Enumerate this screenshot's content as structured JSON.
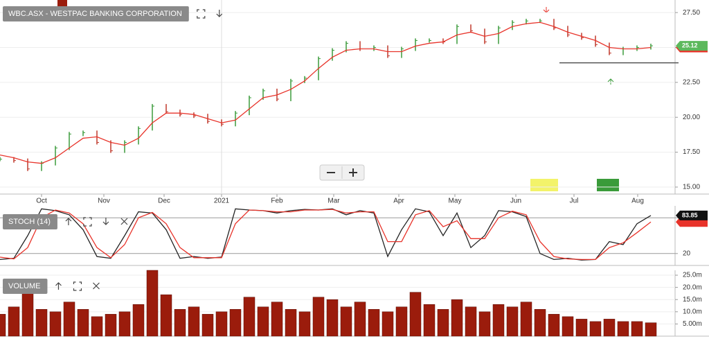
{
  "chart_data": [
    {
      "type": "stock",
      "title": "WBC.ASX - WESTPAC BANKING CORPORATION",
      "xlim": [
        0,
        48.75
      ],
      "xticks": [
        {
          "value": 3,
          "label": "Oct"
        },
        {
          "value": 7.5,
          "label": "Nov"
        },
        {
          "value": 11.85,
          "label": "Dec"
        },
        {
          "value": 16,
          "label": "2021"
        },
        {
          "value": 20,
          "label": "Feb"
        },
        {
          "value": 24.1,
          "label": "Mar"
        },
        {
          "value": 28.8,
          "label": "Apr"
        },
        {
          "value": 32.85,
          "label": "May"
        },
        {
          "value": 37.25,
          "label": "Jun"
        },
        {
          "value": 41.45,
          "label": "Jul"
        },
        {
          "value": 46.05,
          "label": "Aug"
        }
      ],
      "ylim": [
        14.5,
        28.4
      ],
      "yticks": [
        {
          "value": 15,
          "label": "15.00"
        },
        {
          "value": 17.5,
          "label": "17.50"
        },
        {
          "value": 20,
          "label": "20.00"
        },
        {
          "value": 22.5,
          "label": "22.50"
        },
        {
          "value": 25,
          "label": "25.00"
        },
        {
          "value": 27.5,
          "label": "27.50"
        }
      ],
      "hline": 23.9,
      "series": [
        {
          "color": "#3a9b3a",
          "down_color": "#c0392b",
          "values": [
            17.0,
            16.9,
            16.3,
            16.7,
            17.8,
            18.8,
            18.9,
            18.2,
            17.6,
            18.2,
            19.2,
            20.8,
            20.4,
            20.2,
            20.1,
            19.7,
            19.5,
            20.3,
            21.4,
            21.9,
            21.3,
            22.6,
            22.8,
            24.2,
            24.8,
            25.3,
            24.9,
            25.0,
            24.4,
            24.9,
            25.5,
            25.5,
            25.4,
            26.5,
            26.2,
            25.4,
            26.4,
            26.8,
            26.9,
            26.9,
            26.4,
            25.9,
            25.7,
            25.2,
            24.6,
            24.9,
            25.0,
            25.12
          ]
        },
        {
          "color": "#e8332a",
          "values": [
            17.3,
            17.1,
            16.8,
            16.7,
            17.1,
            17.8,
            18.5,
            18.6,
            18.2,
            18.0,
            18.5,
            19.6,
            20.3,
            20.3,
            20.2,
            19.9,
            19.6,
            19.8,
            20.6,
            21.4,
            21.6,
            22.0,
            22.6,
            23.5,
            24.3,
            24.8,
            24.9,
            24.9,
            24.7,
            24.7,
            25.1,
            25.3,
            25.4,
            25.9,
            26.1,
            25.8,
            26.0,
            26.5,
            26.7,
            26.8,
            26.5,
            26.1,
            25.8,
            25.5,
            25.0,
            24.9,
            24.9,
            25.0
          ]
        }
      ]
    },
    {
      "type": "line",
      "title": "STOCH (14)",
      "ylim": [
        0,
        100
      ],
      "yticks": [
        20,
        80
      ],
      "series": [
        {
          "color": "#222222",
          "values": [
            10,
            12,
            50,
            95,
            92,
            85,
            60,
            15,
            12,
            50,
            90,
            88,
            60,
            12,
            15,
            12,
            14,
            95,
            93,
            92,
            88,
            92,
            94,
            93,
            95,
            85,
            92,
            88,
            15,
            60,
            95,
            90,
            50,
            88,
            30,
            50,
            92,
            90,
            82,
            20,
            10,
            12,
            9,
            10,
            40,
            35,
            70,
            83.85
          ]
        },
        {
          "color": "#e8332a",
          "values": [
            14,
            11,
            30,
            80,
            93,
            88,
            70,
            30,
            13,
            35,
            80,
            89,
            70,
            30,
            13,
            13,
            13,
            70,
            93,
            92,
            90,
            90,
            93,
            93,
            94,
            88,
            90,
            90,
            40,
            40,
            85,
            92,
            65,
            75,
            45,
            45,
            80,
            91,
            85,
            40,
            15,
            11,
            10,
            10,
            30,
            38,
            55,
            73
          ]
        }
      ]
    },
    {
      "type": "bar",
      "title": "VOLUME",
      "color": "#9b1c0c",
      "ylim": [
        0,
        27
      ],
      "yticks": [
        {
          "value": 5,
          "label": "5.00m"
        },
        {
          "value": 10,
          "label": "10.0m"
        },
        {
          "value": 15,
          "label": "15.0m"
        },
        {
          "value": 20,
          "label": "20.0m"
        },
        {
          "value": 25,
          "label": "25.0m"
        }
      ],
      "values": [
        9,
        12,
        18,
        11,
        10,
        14,
        11,
        8,
        9,
        10,
        13,
        27,
        17,
        11,
        12,
        9,
        10,
        11,
        16,
        12,
        14,
        11,
        10,
        16,
        15,
        12,
        14,
        11,
        10,
        12,
        18,
        13,
        11,
        15,
        12,
        10,
        13,
        12,
        14,
        11,
        9,
        8,
        7,
        6,
        7,
        6,
        6,
        5.5
      ]
    }
  ]
}
